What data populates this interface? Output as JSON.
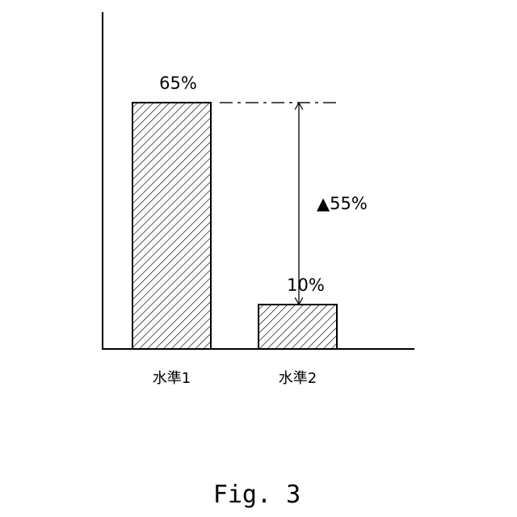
{
  "chart_data": {
    "type": "bar",
    "categories": [
      "水準1",
      "水準2"
    ],
    "values": [
      65,
      10
    ],
    "data_labels": [
      "65%",
      "10%"
    ],
    "annotation": {
      "text": "▲55%",
      "from": 65,
      "to": 10
    },
    "title": "",
    "xlabel": "",
    "ylabel": "",
    "grid": false,
    "bar_fill": "diagonal-hatch",
    "colors": {
      "stroke": "#000000",
      "fill": "#ffffff"
    }
  },
  "caption": "Fig. 3"
}
